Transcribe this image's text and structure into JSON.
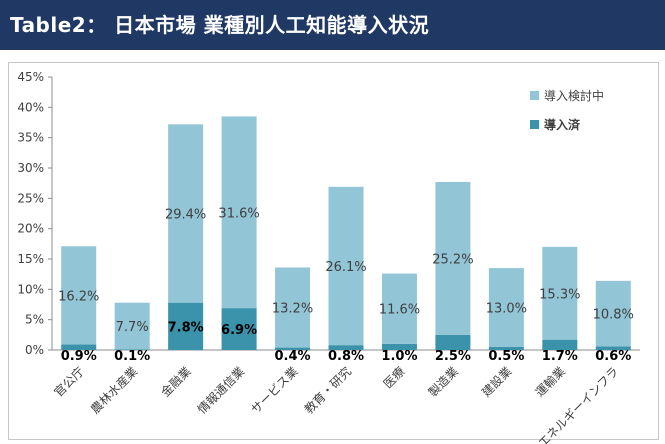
{
  "header": {
    "title": "Table2： 日本市場 業種別人工知能導入状況"
  },
  "colors": {
    "header_bg": "#1f3864",
    "planned": "#92c5d6",
    "adopted": "#3a92ab"
  },
  "chart_data": {
    "type": "bar",
    "stacked": true,
    "title": "",
    "xlabel": "",
    "ylabel": "",
    "ylim": [
      0,
      45
    ],
    "yticks": [
      "0%",
      "5%",
      "10%",
      "15%",
      "20%",
      "25%",
      "30%",
      "35%",
      "40%",
      "45%"
    ],
    "grid": false,
    "legend_position": "top-right",
    "categories": [
      "官公庁",
      "農林水産業",
      "金融業",
      "情報通信業",
      "サービス業",
      "教育・研究",
      "医療",
      "製造業",
      "建設業",
      "運輸業",
      "エネルギーインフラ"
    ],
    "series": [
      {
        "name": "導入済",
        "color": "#3a92ab",
        "values": [
          0.9,
          0.1,
          7.8,
          6.9,
          0.4,
          0.8,
          1.0,
          2.5,
          0.5,
          1.7,
          0.6
        ],
        "labels": [
          "0.9%",
          "0.1%",
          "7.8%",
          "6.9%",
          "0.4%",
          "0.8%",
          "1.0%",
          "2.5%",
          "0.5%",
          "1.7%",
          "0.6%"
        ]
      },
      {
        "name": "導入検討中",
        "color": "#92c5d6",
        "values": [
          16.2,
          7.7,
          29.4,
          31.6,
          13.2,
          26.1,
          11.6,
          25.2,
          13.0,
          15.3,
          10.8
        ],
        "labels": [
          "16.2%",
          "7.7%",
          "29.4%",
          "31.6%",
          "13.2%",
          "26.1%",
          "11.6%",
          "25.2%",
          "13.0%",
          "15.3%",
          "10.8%"
        ]
      }
    ],
    "legend": [
      "導入検討中",
      "導入済"
    ]
  }
}
